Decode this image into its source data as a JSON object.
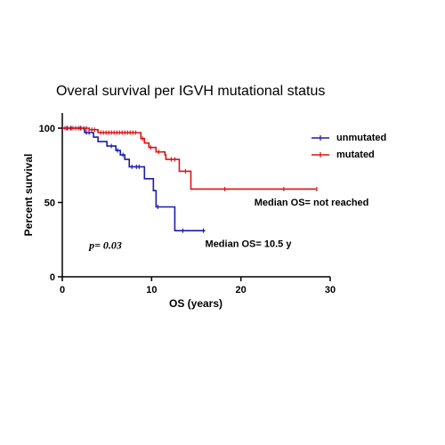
{
  "chart_data": {
    "type": "line",
    "title": "Overal survival per IGVH mutational status",
    "xlabel": "OS (years)",
    "ylabel": "Percent survival",
    "xlim": [
      0,
      30
    ],
    "ylim": [
      0,
      110
    ],
    "xticks": [
      0,
      10,
      20,
      30
    ],
    "yticks": [
      0,
      50,
      100
    ],
    "grid": false,
    "legend_position": "top-right",
    "series": [
      {
        "name": "unmutated",
        "color": "#1c1ca8",
        "points": [
          [
            0,
            100
          ],
          [
            2.5,
            97
          ],
          [
            3.5,
            94
          ],
          [
            4,
            91
          ],
          [
            5,
            88
          ],
          [
            6,
            85
          ],
          [
            6.5,
            82
          ],
          [
            7,
            79
          ],
          [
            7.5,
            74
          ],
          [
            9,
            74
          ],
          [
            9.2,
            66
          ],
          [
            10.2,
            58
          ],
          [
            10.5,
            47
          ],
          [
            12.5,
            47
          ],
          [
            12.6,
            31
          ],
          [
            16,
            31
          ]
        ],
        "censor_points": [
          [
            0.5,
            100
          ],
          [
            1,
            100
          ],
          [
            1.5,
            100
          ],
          [
            2,
            100
          ],
          [
            2.7,
            97
          ],
          [
            3,
            97
          ],
          [
            5.5,
            88
          ],
          [
            6.2,
            85
          ],
          [
            6.8,
            82
          ],
          [
            7.8,
            74
          ],
          [
            8.3,
            74
          ],
          [
            8.6,
            74
          ],
          [
            10.7,
            47
          ],
          [
            13.5,
            31
          ],
          [
            15.8,
            31
          ]
        ]
      },
      {
        "name": "mutated",
        "color": "#dd1111",
        "points": [
          [
            0,
            100
          ],
          [
            3,
            99
          ],
          [
            4,
            97
          ],
          [
            8.5,
            97
          ],
          [
            8.8,
            93
          ],
          [
            9.2,
            90
          ],
          [
            9.7,
            87
          ],
          [
            10.5,
            84
          ],
          [
            11.5,
            82
          ],
          [
            11.6,
            79
          ],
          [
            13,
            79
          ],
          [
            13.1,
            71
          ],
          [
            14.3,
            71
          ],
          [
            14.4,
            59
          ],
          [
            28.5,
            59
          ]
        ],
        "censor_points": [
          [
            0.3,
            100
          ],
          [
            0.6,
            100
          ],
          [
            0.9,
            100
          ],
          [
            1.2,
            100
          ],
          [
            1.5,
            100
          ],
          [
            1.8,
            100
          ],
          [
            2.1,
            100
          ],
          [
            2.4,
            100
          ],
          [
            2.7,
            100
          ],
          [
            3.3,
            99
          ],
          [
            3.6,
            99
          ],
          [
            4.3,
            97
          ],
          [
            4.6,
            97
          ],
          [
            4.9,
            97
          ],
          [
            5.2,
            97
          ],
          [
            5.5,
            97
          ],
          [
            5.8,
            97
          ],
          [
            6.1,
            97
          ],
          [
            6.4,
            97
          ],
          [
            6.7,
            97
          ],
          [
            7,
            97
          ],
          [
            7.3,
            97
          ],
          [
            7.6,
            97
          ],
          [
            7.9,
            97
          ],
          [
            8.2,
            97
          ],
          [
            9,
            93
          ],
          [
            9.9,
            87
          ],
          [
            10.8,
            84
          ],
          [
            12.2,
            79
          ],
          [
            12.6,
            79
          ],
          [
            13.8,
            71
          ],
          [
            18.2,
            59
          ],
          [
            24.8,
            59
          ],
          [
            28.5,
            59
          ]
        ]
      }
    ],
    "annotations": [
      {
        "text": "Median OS= not reached",
        "x": 21.5,
        "y": 48
      },
      {
        "text": "Median  OS= 10.5 y",
        "x": 16,
        "y": 20
      },
      {
        "text": "p= 0.03",
        "x": 3,
        "y": 19
      }
    ]
  }
}
